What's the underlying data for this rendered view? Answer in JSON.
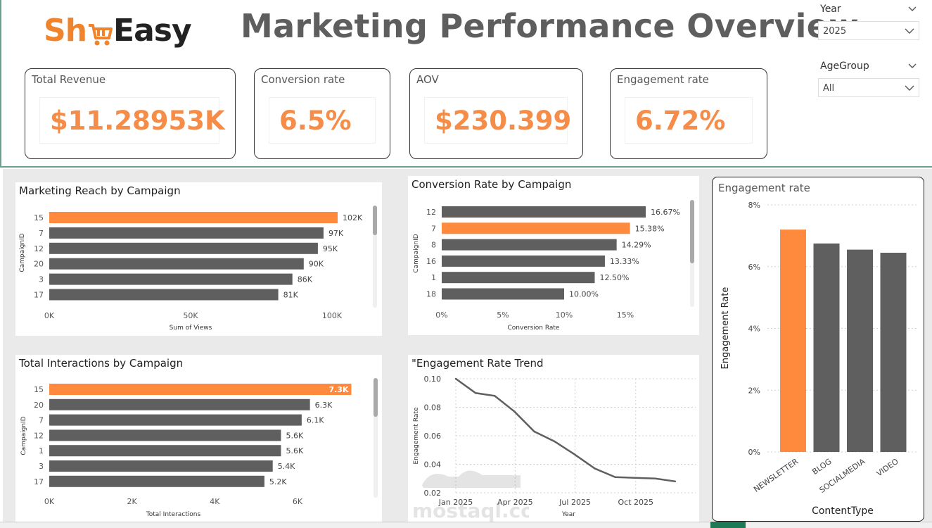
{
  "brand": {
    "name_part1": "Sh",
    "name_part2": "Easy",
    "logo_color": "#f0842c"
  },
  "page_title": "Marketing Performance Overview",
  "kpis": [
    {
      "label": "Total Revenue",
      "value": "$11.28953K"
    },
    {
      "label": "Conversion rate",
      "value": "6.5%"
    },
    {
      "label": "AOV",
      "value": "$230.399"
    },
    {
      "label": "Engagement rate",
      "value": "6.72%"
    }
  ],
  "filters": {
    "year": {
      "label": "Year",
      "selected": "2025"
    },
    "age_group": {
      "label": "AgeGroup",
      "selected": "All"
    }
  },
  "colors": {
    "accent": "#f58c47",
    "bar": "#5f5f5f",
    "highlight": "#ff8a3d"
  },
  "chart_data": [
    {
      "type": "bar",
      "orientation": "horizontal",
      "title": "Marketing Reach by Campaign",
      "xlabel": "Sum of Views",
      "ylabel": "CampaignID",
      "categories": [
        "15",
        "7",
        "12",
        "20",
        "3",
        "17"
      ],
      "values": [
        102000,
        97000,
        95000,
        90000,
        86000,
        81000
      ],
      "data_labels": [
        "102K",
        "97K",
        "95K",
        "90K",
        "86K",
        "81K"
      ],
      "highlight_index": 0,
      "xlim": [
        0,
        100000
      ],
      "xticks": [
        0,
        50000,
        100000
      ],
      "xtick_labels": [
        "0K",
        "50K",
        "100K"
      ]
    },
    {
      "type": "bar",
      "orientation": "horizontal",
      "title": "Conversion Rate by Campaign",
      "xlabel": "Conversion Rate",
      "ylabel": "CampaignID",
      "categories": [
        "12",
        "7",
        "8",
        "16",
        "1",
        "18"
      ],
      "values": [
        16.67,
        15.38,
        14.29,
        13.33,
        12.5,
        10.0
      ],
      "data_labels": [
        "16.67%",
        "15.38%",
        "14.29%",
        "13.33%",
        "12.50%",
        "10.00%"
      ],
      "highlight_index": 1,
      "xlim": [
        0,
        15
      ],
      "xticks": [
        0,
        5,
        10,
        15
      ],
      "xtick_labels": [
        "0%",
        "5%",
        "10%",
        "15%"
      ]
    },
    {
      "type": "bar",
      "orientation": "horizontal",
      "title": "Total Interactions by Campaign",
      "xlabel": "Total Interactions",
      "ylabel": "CampaignID",
      "categories": [
        "15",
        "20",
        "7",
        "12",
        "1",
        "3",
        "17"
      ],
      "values": [
        7300,
        6300,
        6100,
        5600,
        5600,
        5400,
        5200
      ],
      "data_labels": [
        "7.3K",
        "6.3K",
        "6.1K",
        "5.6K",
        "5.6K",
        "5.4K",
        "5.2K"
      ],
      "highlight_index": 0,
      "xlim": [
        0,
        6000
      ],
      "xticks": [
        0,
        2000,
        4000,
        6000
      ],
      "xtick_labels": [
        "0K",
        "2K",
        "4K",
        "6K"
      ]
    },
    {
      "type": "line",
      "title": "\"Engagement Rate Trend",
      "xlabel": "Year",
      "ylabel": "Engagement Rate",
      "x": [
        "2025-01-01",
        "2025-01-31",
        "2025-03-01",
        "2025-03-31",
        "2025-04-30",
        "2025-05-31",
        "2025-06-30",
        "2025-07-31",
        "2025-08-31",
        "2025-09-30",
        "2025-10-31",
        "2025-11-30"
      ],
      "y": [
        0.1,
        0.09,
        0.088,
        0.077,
        0.063,
        0.056,
        0.047,
        0.037,
        0.031,
        0.0305,
        0.03,
        0.028
      ],
      "xticks": [
        "2025-01-01",
        "2025-04-01",
        "2025-07-01",
        "2025-10-01"
      ],
      "xtick_labels": [
        "Jan 2025",
        "Apr 2025",
        "Jul 2025",
        "Oct 2025"
      ],
      "ylim": [
        0.02,
        0.1
      ],
      "yticks": [
        0.02,
        0.04,
        0.06,
        0.08,
        0.1
      ],
      "ytick_labels": [
        "0.02",
        "0.04",
        "0.06",
        "0.08",
        "0.10"
      ]
    },
    {
      "type": "bar",
      "orientation": "vertical",
      "title": "Engagement rate",
      "xlabel": "ContentType",
      "ylabel": "Engagement Rate",
      "categories": [
        "NEWSLETTER",
        "BLOG",
        "SOCIALMEDIA",
        "VIDEO"
      ],
      "values": [
        7.2,
        6.75,
        6.55,
        6.45
      ],
      "highlight_index": 0,
      "ylim": [
        0,
        8
      ],
      "yticks": [
        0,
        2,
        4,
        6,
        8
      ],
      "ytick_labels": [
        "0%",
        "2%",
        "4%",
        "6%",
        "8%"
      ]
    }
  ],
  "watermark": {
    "text": "mostaql.com"
  }
}
